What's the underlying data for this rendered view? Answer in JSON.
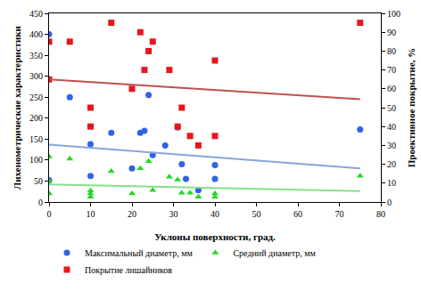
{
  "chart_data": {
    "type": "scatter",
    "x_label": "Уклоны поверхности, град.",
    "y_label": "Лихенометрические характеристики",
    "y2_label": "Проективное покрытие, %",
    "xlim": [
      0,
      80
    ],
    "xticks": [
      0,
      10,
      20,
      30,
      40,
      50,
      60,
      70,
      80
    ],
    "ylim": [
      0,
      450
    ],
    "yticks": [
      0,
      50,
      100,
      150,
      200,
      250,
      300,
      350,
      400,
      450
    ],
    "y2lim": [
      0,
      100
    ],
    "y2ticks": [
      0,
      10,
      20,
      30,
      40,
      50,
      60,
      70,
      80,
      90,
      100
    ],
    "grid": false,
    "legend": "bottom",
    "series": [
      {
        "name": "Максимальный диаметр, мм",
        "type": "scatter",
        "color": "#2f62e8",
        "marker": "circle",
        "x": [
          0,
          0,
          5,
          10,
          10,
          15,
          20,
          22,
          23,
          24,
          25,
          28,
          31,
          32,
          33,
          36,
          40,
          40,
          75
        ],
        "values": [
          400,
          52,
          250,
          138,
          62,
          165,
          80,
          165,
          170,
          255,
          112,
          135,
          178,
          90,
          55,
          28,
          88,
          55,
          173
        ]
      },
      {
        "name": "Средний диаметр, мм",
        "type": "scatter",
        "color": "#22d822",
        "marker": "triangle-up",
        "x": [
          0,
          0,
          0,
          5,
          10,
          10,
          10,
          15,
          20,
          22,
          24,
          25,
          29,
          31,
          32,
          34,
          36,
          40,
          40,
          75
        ],
        "values": [
          108,
          50,
          20,
          103,
          27,
          20,
          12,
          73,
          20,
          80,
          97,
          28,
          60,
          53,
          22,
          22,
          12,
          20,
          12,
          62
        ]
      },
      {
        "name": "Покрытие лишайников",
        "type": "scatter",
        "color": "#e8161b",
        "marker": "square",
        "axis": "y2",
        "x": [
          0,
          0,
          5,
          10,
          10,
          15,
          20,
          22,
          23,
          24,
          25,
          29,
          31,
          32,
          34,
          36,
          40,
          40,
          75
        ],
        "values": [
          85,
          65,
          85,
          50,
          40,
          95,
          60,
          90,
          70,
          80,
          85,
          70,
          40,
          50,
          35,
          30,
          75,
          35,
          95
        ]
      },
      {
        "type": "line",
        "color": "#8aa4dc",
        "line_style": "solid",
        "x": [
          0,
          75
        ],
        "values": [
          137,
          80
        ]
      },
      {
        "type": "line",
        "color": "#86e086",
        "line_style": "solid",
        "x": [
          0,
          75
        ],
        "values": [
          42,
          26
        ]
      },
      {
        "type": "line",
        "color": "#c05050",
        "line_style": "solid",
        "axis": "y2",
        "x": [
          0,
          75
        ],
        "values": [
          65,
          54.5
        ]
      }
    ]
  }
}
